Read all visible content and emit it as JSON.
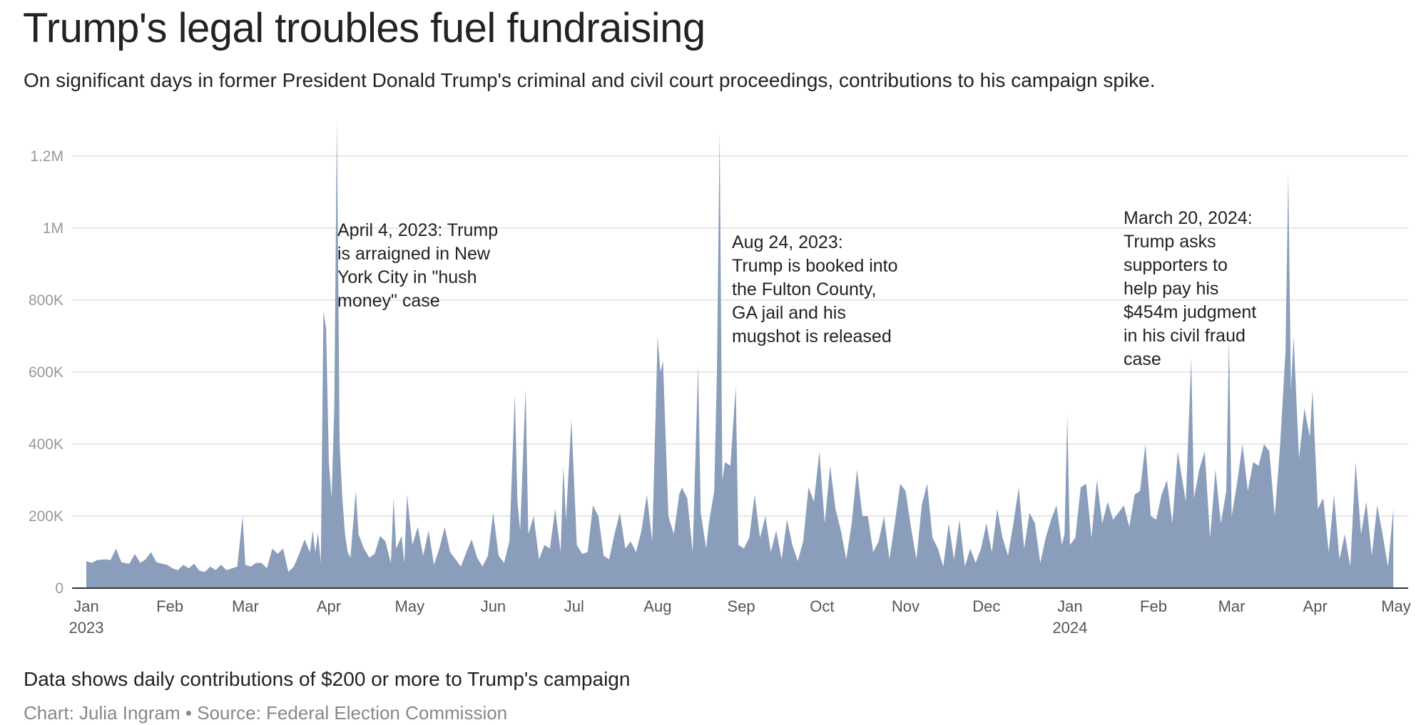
{
  "title": "Trump's legal troubles fuel fundraising",
  "subtitle": "On significant days in former President Donald Trump's criminal and civil court proceedings, contributions to his campaign spike.",
  "footnote": "Data shows daily contributions of $200 or more to Trump's campaign",
  "source": "Chart: Julia Ingram • Source: Federal Election Commission",
  "chart_data": {
    "type": "area",
    "title": "Trump's legal troubles fuel fundraising",
    "xlabel": "",
    "ylabel": "",
    "ylim": [
      0,
      1300000
    ],
    "xlim": [
      "2023-01-01",
      "2024-05-01"
    ],
    "grid": true,
    "fill_color": "#8a9ebc",
    "y_ticks": [
      {
        "value": 0,
        "label": "0"
      },
      {
        "value": 200000,
        "label": "200K"
      },
      {
        "value": 400000,
        "label": "400K"
      },
      {
        "value": 600000,
        "label": "600K"
      },
      {
        "value": 800000,
        "label": "800K"
      },
      {
        "value": 1000000,
        "label": "1M"
      },
      {
        "value": 1200000,
        "label": "1.2M"
      }
    ],
    "x_ticks": [
      {
        "date": "2023-01-01",
        "label": "Jan",
        "sublabel": "2023"
      },
      {
        "date": "2023-02-01",
        "label": "Feb"
      },
      {
        "date": "2023-03-01",
        "label": "Mar"
      },
      {
        "date": "2023-04-01",
        "label": "Apr"
      },
      {
        "date": "2023-05-01",
        "label": "May"
      },
      {
        "date": "2023-06-01",
        "label": "Jun"
      },
      {
        "date": "2023-07-01",
        "label": "Jul"
      },
      {
        "date": "2023-08-01",
        "label": "Aug"
      },
      {
        "date": "2023-09-01",
        "label": "Sep"
      },
      {
        "date": "2023-10-01",
        "label": "Oct"
      },
      {
        "date": "2023-11-01",
        "label": "Nov"
      },
      {
        "date": "2023-12-01",
        "label": "Dec"
      },
      {
        "date": "2024-01-01",
        "label": "Jan",
        "sublabel": "2024"
      },
      {
        "date": "2024-02-01",
        "label": "Feb"
      },
      {
        "date": "2024-03-01",
        "label": "Mar"
      },
      {
        "date": "2024-04-01",
        "label": "Apr"
      },
      {
        "date": "2024-05-01",
        "label": "May"
      }
    ],
    "annotations": [
      {
        "date": "2023-04-04",
        "text": "April 4, 2023: Trump\nis arraigned in New\nYork City in \"hush\nmoney\" case"
      },
      {
        "date": "2023-08-24",
        "text": "Aug 24, 2023:\nTrump is booked into\nthe Fulton County,\nGA jail and his\nmugshot is released"
      },
      {
        "date": "2024-03-20",
        "text": "March 20, 2024:\nTrump asks\nsupporters to\nhelp pay his\n$454m judgment\nin his civil fraud\ncase"
      }
    ],
    "points": [
      [
        "2023-01-01",
        75000
      ],
      [
        "2023-01-03",
        70000
      ],
      [
        "2023-01-05",
        78000
      ],
      [
        "2023-01-08",
        80000
      ],
      [
        "2023-01-10",
        78000
      ],
      [
        "2023-01-12",
        110000
      ],
      [
        "2023-01-14",
        72000
      ],
      [
        "2023-01-17",
        68000
      ],
      [
        "2023-01-19",
        95000
      ],
      [
        "2023-01-21",
        70000
      ],
      [
        "2023-01-23",
        80000
      ],
      [
        "2023-01-25",
        100000
      ],
      [
        "2023-01-27",
        72000
      ],
      [
        "2023-01-29",
        68000
      ],
      [
        "2023-01-31",
        65000
      ],
      [
        "2023-02-02",
        55000
      ],
      [
        "2023-02-04",
        50000
      ],
      [
        "2023-02-06",
        65000
      ],
      [
        "2023-02-08",
        55000
      ],
      [
        "2023-02-10",
        68000
      ],
      [
        "2023-02-12",
        48000
      ],
      [
        "2023-02-14",
        45000
      ],
      [
        "2023-02-16",
        60000
      ],
      [
        "2023-02-18",
        50000
      ],
      [
        "2023-02-20",
        65000
      ],
      [
        "2023-02-22",
        50000
      ],
      [
        "2023-02-24",
        55000
      ],
      [
        "2023-02-26",
        60000
      ],
      [
        "2023-02-28",
        200000
      ],
      [
        "2023-03-01",
        65000
      ],
      [
        "2023-03-03",
        60000
      ],
      [
        "2023-03-05",
        70000
      ],
      [
        "2023-03-07",
        70000
      ],
      [
        "2023-03-09",
        55000
      ],
      [
        "2023-03-11",
        110000
      ],
      [
        "2023-03-13",
        95000
      ],
      [
        "2023-03-15",
        110000
      ],
      [
        "2023-03-17",
        45000
      ],
      [
        "2023-03-19",
        60000
      ],
      [
        "2023-03-21",
        95000
      ],
      [
        "2023-03-23",
        135000
      ],
      [
        "2023-03-25",
        100000
      ],
      [
        "2023-03-26",
        160000
      ],
      [
        "2023-03-27",
        100000
      ],
      [
        "2023-03-28",
        155000
      ],
      [
        "2023-03-29",
        70000
      ],
      [
        "2023-03-30",
        770000
      ],
      [
        "2023-03-31",
        720000
      ],
      [
        "2023-04-01",
        350000
      ],
      [
        "2023-04-02",
        250000
      ],
      [
        "2023-04-03",
        500000
      ],
      [
        "2023-04-04",
        1300000
      ],
      [
        "2023-04-05",
        400000
      ],
      [
        "2023-04-06",
        250000
      ],
      [
        "2023-04-07",
        150000
      ],
      [
        "2023-04-08",
        100000
      ],
      [
        "2023-04-09",
        85000
      ],
      [
        "2023-04-11",
        270000
      ],
      [
        "2023-04-12",
        150000
      ],
      [
        "2023-04-14",
        110000
      ],
      [
        "2023-04-16",
        85000
      ],
      [
        "2023-04-18",
        95000
      ],
      [
        "2023-04-20",
        145000
      ],
      [
        "2023-04-22",
        130000
      ],
      [
        "2023-04-24",
        70000
      ],
      [
        "2023-04-25",
        250000
      ],
      [
        "2023-04-26",
        110000
      ],
      [
        "2023-04-28",
        145000
      ],
      [
        "2023-04-29",
        70000
      ],
      [
        "2023-04-30",
        260000
      ],
      [
        "2023-05-02",
        120000
      ],
      [
        "2023-05-04",
        170000
      ],
      [
        "2023-05-06",
        90000
      ],
      [
        "2023-05-08",
        160000
      ],
      [
        "2023-05-10",
        65000
      ],
      [
        "2023-05-12",
        110000
      ],
      [
        "2023-05-14",
        170000
      ],
      [
        "2023-05-16",
        100000
      ],
      [
        "2023-05-18",
        80000
      ],
      [
        "2023-05-20",
        60000
      ],
      [
        "2023-05-22",
        100000
      ],
      [
        "2023-05-24",
        135000
      ],
      [
        "2023-05-26",
        85000
      ],
      [
        "2023-05-28",
        60000
      ],
      [
        "2023-05-30",
        90000
      ],
      [
        "2023-06-01",
        210000
      ],
      [
        "2023-06-03",
        90000
      ],
      [
        "2023-06-05",
        70000
      ],
      [
        "2023-06-07",
        130000
      ],
      [
        "2023-06-09",
        540000
      ],
      [
        "2023-06-10",
        240000
      ],
      [
        "2023-06-11",
        160000
      ],
      [
        "2023-06-13",
        555000
      ],
      [
        "2023-06-14",
        150000
      ],
      [
        "2023-06-16",
        200000
      ],
      [
        "2023-06-18",
        80000
      ],
      [
        "2023-06-20",
        120000
      ],
      [
        "2023-06-22",
        110000
      ],
      [
        "2023-06-24",
        220000
      ],
      [
        "2023-06-26",
        100000
      ],
      [
        "2023-06-27",
        340000
      ],
      [
        "2023-06-28",
        190000
      ],
      [
        "2023-06-30",
        470000
      ],
      [
        "2023-07-02",
        120000
      ],
      [
        "2023-07-04",
        95000
      ],
      [
        "2023-07-06",
        100000
      ],
      [
        "2023-07-08",
        230000
      ],
      [
        "2023-07-10",
        200000
      ],
      [
        "2023-07-12",
        90000
      ],
      [
        "2023-07-14",
        80000
      ],
      [
        "2023-07-16",
        150000
      ],
      [
        "2023-07-18",
        210000
      ],
      [
        "2023-07-20",
        110000
      ],
      [
        "2023-07-22",
        130000
      ],
      [
        "2023-07-24",
        100000
      ],
      [
        "2023-07-26",
        160000
      ],
      [
        "2023-07-28",
        260000
      ],
      [
        "2023-07-30",
        130000
      ],
      [
        "2023-08-01",
        700000
      ],
      [
        "2023-08-02",
        600000
      ],
      [
        "2023-08-03",
        630000
      ],
      [
        "2023-08-05",
        200000
      ],
      [
        "2023-08-07",
        150000
      ],
      [
        "2023-08-09",
        260000
      ],
      [
        "2023-08-10",
        280000
      ],
      [
        "2023-08-12",
        250000
      ],
      [
        "2023-08-14",
        100000
      ],
      [
        "2023-08-16",
        620000
      ],
      [
        "2023-08-17",
        210000
      ],
      [
        "2023-08-19",
        110000
      ],
      [
        "2023-08-20",
        180000
      ],
      [
        "2023-08-22",
        270000
      ],
      [
        "2023-08-23",
        600000
      ],
      [
        "2023-08-24",
        1270000
      ],
      [
        "2023-08-25",
        300000
      ],
      [
        "2023-08-26",
        350000
      ],
      [
        "2023-08-28",
        340000
      ],
      [
        "2023-08-30",
        560000
      ],
      [
        "2023-08-31",
        120000
      ],
      [
        "2023-09-02",
        110000
      ],
      [
        "2023-09-04",
        140000
      ],
      [
        "2023-09-06",
        260000
      ],
      [
        "2023-09-08",
        140000
      ],
      [
        "2023-09-10",
        200000
      ],
      [
        "2023-09-12",
        100000
      ],
      [
        "2023-09-14",
        160000
      ],
      [
        "2023-09-16",
        80000
      ],
      [
        "2023-09-18",
        190000
      ],
      [
        "2023-09-20",
        120000
      ],
      [
        "2023-09-22",
        75000
      ],
      [
        "2023-09-24",
        130000
      ],
      [
        "2023-09-26",
        280000
      ],
      [
        "2023-09-28",
        240000
      ],
      [
        "2023-09-30",
        380000
      ],
      [
        "2023-10-02",
        180000
      ],
      [
        "2023-10-04",
        340000
      ],
      [
        "2023-10-06",
        220000
      ],
      [
        "2023-10-08",
        160000
      ],
      [
        "2023-10-10",
        80000
      ],
      [
        "2023-10-12",
        180000
      ],
      [
        "2023-10-14",
        330000
      ],
      [
        "2023-10-16",
        200000
      ],
      [
        "2023-10-18",
        200000
      ],
      [
        "2023-10-20",
        100000
      ],
      [
        "2023-10-22",
        130000
      ],
      [
        "2023-10-24",
        200000
      ],
      [
        "2023-10-26",
        80000
      ],
      [
        "2023-10-28",
        180000
      ],
      [
        "2023-10-30",
        290000
      ],
      [
        "2023-11-01",
        270000
      ],
      [
        "2023-11-03",
        170000
      ],
      [
        "2023-11-05",
        80000
      ],
      [
        "2023-11-07",
        230000
      ],
      [
        "2023-11-09",
        290000
      ],
      [
        "2023-11-11",
        140000
      ],
      [
        "2023-11-13",
        110000
      ],
      [
        "2023-11-15",
        60000
      ],
      [
        "2023-11-17",
        180000
      ],
      [
        "2023-11-19",
        80000
      ],
      [
        "2023-11-21",
        190000
      ],
      [
        "2023-11-23",
        60000
      ],
      [
        "2023-11-25",
        110000
      ],
      [
        "2023-11-27",
        70000
      ],
      [
        "2023-11-29",
        110000
      ],
      [
        "2023-12-01",
        180000
      ],
      [
        "2023-12-03",
        100000
      ],
      [
        "2023-12-05",
        220000
      ],
      [
        "2023-12-07",
        140000
      ],
      [
        "2023-12-09",
        90000
      ],
      [
        "2023-12-11",
        180000
      ],
      [
        "2023-12-13",
        280000
      ],
      [
        "2023-12-15",
        110000
      ],
      [
        "2023-12-17",
        210000
      ],
      [
        "2023-12-19",
        180000
      ],
      [
        "2023-12-21",
        70000
      ],
      [
        "2023-12-23",
        140000
      ],
      [
        "2023-12-25",
        190000
      ],
      [
        "2023-12-27",
        230000
      ],
      [
        "2023-12-29",
        120000
      ],
      [
        "2023-12-30",
        150000
      ],
      [
        "2023-12-31",
        480000
      ],
      [
        "2024-01-01",
        120000
      ],
      [
        "2024-01-03",
        140000
      ],
      [
        "2024-01-05",
        280000
      ],
      [
        "2024-01-07",
        290000
      ],
      [
        "2024-01-09",
        140000
      ],
      [
        "2024-01-11",
        300000
      ],
      [
        "2024-01-13",
        180000
      ],
      [
        "2024-01-15",
        240000
      ],
      [
        "2024-01-17",
        190000
      ],
      [
        "2024-01-19",
        210000
      ],
      [
        "2024-01-21",
        230000
      ],
      [
        "2024-01-23",
        170000
      ],
      [
        "2024-01-25",
        260000
      ],
      [
        "2024-01-27",
        270000
      ],
      [
        "2024-01-29",
        400000
      ],
      [
        "2024-01-31",
        200000
      ],
      [
        "2024-02-02",
        190000
      ],
      [
        "2024-02-04",
        260000
      ],
      [
        "2024-02-06",
        300000
      ],
      [
        "2024-02-08",
        180000
      ],
      [
        "2024-02-10",
        380000
      ],
      [
        "2024-02-13",
        240000
      ],
      [
        "2024-02-15",
        640000
      ],
      [
        "2024-02-16",
        250000
      ],
      [
        "2024-02-18",
        330000
      ],
      [
        "2024-02-20",
        380000
      ],
      [
        "2024-02-22",
        140000
      ],
      [
        "2024-02-24",
        330000
      ],
      [
        "2024-02-26",
        180000
      ],
      [
        "2024-02-28",
        270000
      ],
      [
        "2024-02-29",
        690000
      ],
      [
        "2024-03-01",
        200000
      ],
      [
        "2024-03-03",
        290000
      ],
      [
        "2024-03-05",
        400000
      ],
      [
        "2024-03-07",
        270000
      ],
      [
        "2024-03-09",
        350000
      ],
      [
        "2024-03-11",
        340000
      ],
      [
        "2024-03-13",
        400000
      ],
      [
        "2024-03-15",
        380000
      ],
      [
        "2024-03-17",
        200000
      ],
      [
        "2024-03-19",
        400000
      ],
      [
        "2024-03-21",
        660000
      ],
      [
        "2024-03-22",
        1150000
      ],
      [
        "2024-03-23",
        550000
      ],
      [
        "2024-03-24",
        700000
      ],
      [
        "2024-03-26",
        360000
      ],
      [
        "2024-03-28",
        500000
      ],
      [
        "2024-03-30",
        420000
      ],
      [
        "2024-03-31",
        550000
      ],
      [
        "2024-04-02",
        220000
      ],
      [
        "2024-04-04",
        250000
      ],
      [
        "2024-04-06",
        100000
      ],
      [
        "2024-04-08",
        260000
      ],
      [
        "2024-04-10",
        80000
      ],
      [
        "2024-04-12",
        150000
      ],
      [
        "2024-04-14",
        60000
      ],
      [
        "2024-04-16",
        350000
      ],
      [
        "2024-04-18",
        150000
      ],
      [
        "2024-04-20",
        240000
      ],
      [
        "2024-04-22",
        90000
      ],
      [
        "2024-04-24",
        230000
      ],
      [
        "2024-04-26",
        150000
      ],
      [
        "2024-04-28",
        60000
      ],
      [
        "2024-04-30",
        220000
      ]
    ]
  }
}
